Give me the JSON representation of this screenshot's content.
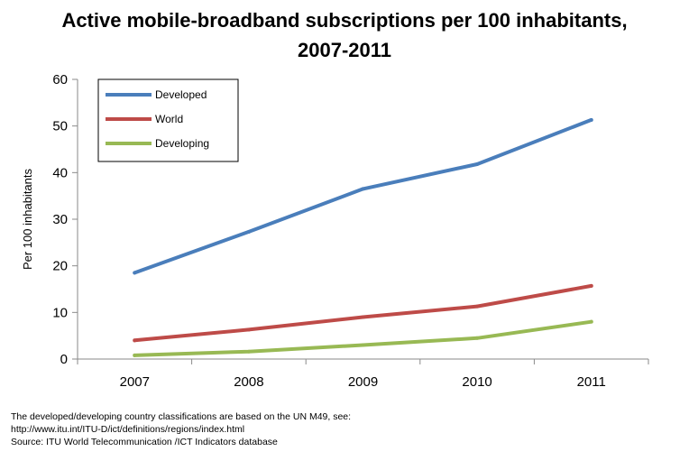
{
  "chart_data": {
    "type": "line",
    "title_lines": [
      "Active mobile-broadband subscriptions per 100 inhabitants,",
      "2007-2011"
    ],
    "xlabel": "",
    "ylabel": "Per 100 inhabitants",
    "categories": [
      "2007",
      "2008",
      "2009",
      "2010",
      "2011"
    ],
    "ylim": [
      0,
      60
    ],
    "yticks": [
      "0",
      "10",
      "20",
      "30",
      "40",
      "50",
      "60"
    ],
    "grid": false,
    "legend_position": "top-left",
    "series": [
      {
        "name": "Developed",
        "color": "#4a7ebb",
        "values": [
          18.5,
          27.3,
          36.5,
          41.8,
          51.3
        ]
      },
      {
        "name": "World",
        "color": "#be4b48",
        "values": [
          4.0,
          6.3,
          9.0,
          11.3,
          15.7
        ]
      },
      {
        "name": "Developing",
        "color": "#98b954",
        "values": [
          0.8,
          1.6,
          3.0,
          4.5,
          8.0
        ]
      }
    ]
  },
  "footnotes": [
    "The developed/developing country classifications are based on the UN M49, see:",
    "http://www.itu.int/ITU-D/ict/definitions/regions/index.html",
    "Source:  ITU World Telecommunication /ICT Indicators database"
  ]
}
